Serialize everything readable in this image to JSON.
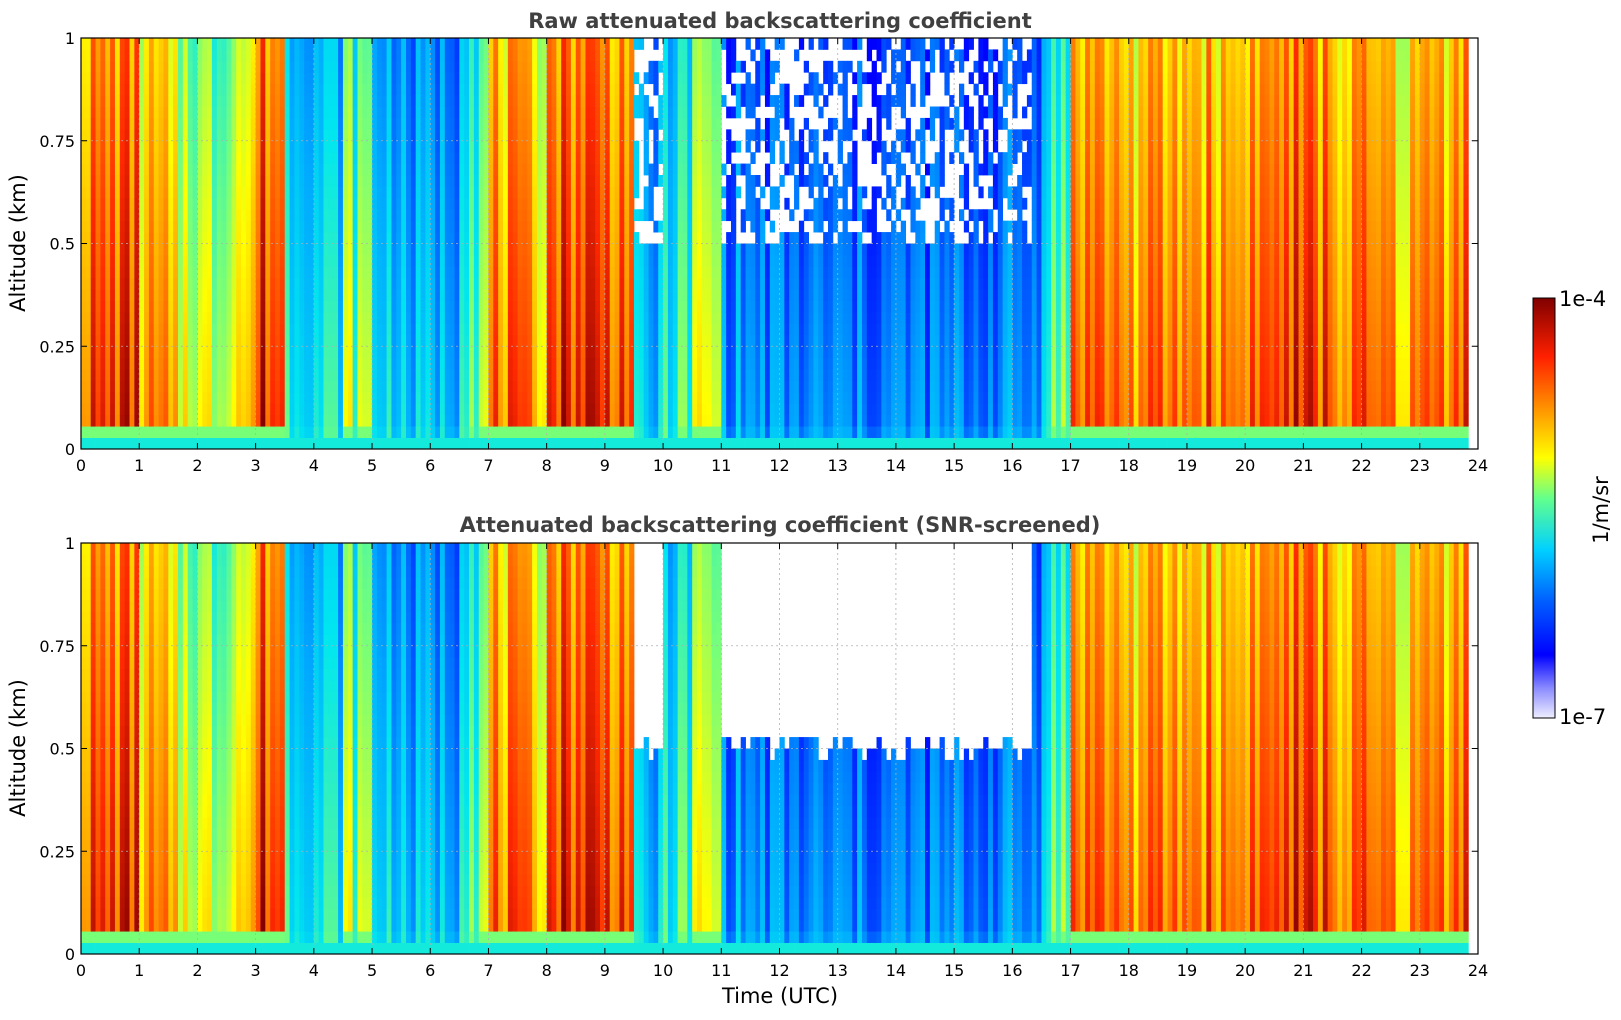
{
  "chart_data": [
    {
      "type": "heatmap",
      "title": "Raw attenuated backscattering coefficient",
      "xlabel": "",
      "ylabel": "Altitude (km)",
      "xlim": [
        0,
        24
      ],
      "ylim": [
        0,
        1
      ],
      "x_ticks": [
        "0",
        "1",
        "2",
        "3",
        "4",
        "5",
        "6",
        "7",
        "8",
        "9",
        "10",
        "11",
        "12",
        "13",
        "14",
        "15",
        "16",
        "17",
        "18",
        "19",
        "20",
        "21",
        "22",
        "23",
        "24"
      ],
      "y_ticks": [
        "0",
        "0.25",
        "0.5",
        "0.75",
        "1"
      ],
      "grid": true,
      "color_scale": "jet",
      "value_range": [
        "1e-7",
        "1e-4"
      ],
      "profile": {
        "columns_hours": [
          0,
          0.5,
          1,
          1.5,
          2,
          2.5,
          3,
          3.5,
          4,
          4.5,
          5,
          5.5,
          6,
          6.5,
          7,
          7.5,
          8,
          8.5,
          9,
          9.5,
          10,
          10.5,
          11,
          11.5,
          12,
          12.5,
          13,
          13.5,
          14,
          14.5,
          15,
          15.5,
          16,
          16.5,
          17,
          17.5,
          18,
          18.5,
          19,
          19.5,
          20,
          20.5,
          21,
          21.5,
          22,
          22.5,
          23,
          23.5
        ],
        "intensity_0_to_1": [
          0.85,
          0.88,
          0.75,
          0.65,
          0.6,
          0.7,
          0.9,
          0.45,
          0.4,
          0.55,
          0.38,
          0.3,
          0.32,
          0.55,
          0.8,
          0.75,
          0.9,
          0.92,
          0.88,
          0.3,
          0.45,
          0.6,
          0.25,
          0.22,
          0.2,
          0.2,
          0.2,
          0.2,
          0.2,
          0.2,
          0.2,
          0.22,
          0.22,
          0.5,
          0.85,
          0.82,
          0.78,
          0.8,
          0.82,
          0.8,
          0.85,
          0.88,
          0.86,
          0.8,
          0.8,
          0.75,
          0.82,
          0.88
        ]
      }
    },
    {
      "type": "heatmap",
      "title": "Attenuated backscattering coefficient (SNR-screened)",
      "xlabel": "Time (UTC)",
      "ylabel": "Altitude (km)",
      "xlim": [
        0,
        24
      ],
      "ylim": [
        0,
        1
      ],
      "x_ticks": [
        "0",
        "1",
        "2",
        "3",
        "4",
        "5",
        "6",
        "7",
        "8",
        "9",
        "10",
        "11",
        "12",
        "13",
        "14",
        "15",
        "16",
        "17",
        "18",
        "19",
        "20",
        "21",
        "22",
        "23",
        "24"
      ],
      "y_ticks": [
        "0",
        "0.25",
        "0.5",
        "0.75",
        "1"
      ],
      "grid": true,
      "color_scale": "jet",
      "value_range": [
        "1e-7",
        "1e-4"
      ],
      "screened_gap": {
        "from_hour": 8.0,
        "to_hour": 16.3,
        "lowest_blank_altitude_km": 0.5
      }
    }
  ],
  "colorbar": {
    "label": "1/m/sr",
    "max_label": "1e-4",
    "min_label": "1e-7",
    "colors": [
      "#eeeeff",
      "#c8c8ff",
      "#8c8cff",
      "#0000ff",
      "#0050ff",
      "#00a0ff",
      "#00e0ff",
      "#40ffc0",
      "#a0ff60",
      "#ffff00",
      "#ffc000",
      "#ff8000",
      "#ff3000",
      "#d00000",
      "#800000"
    ]
  }
}
